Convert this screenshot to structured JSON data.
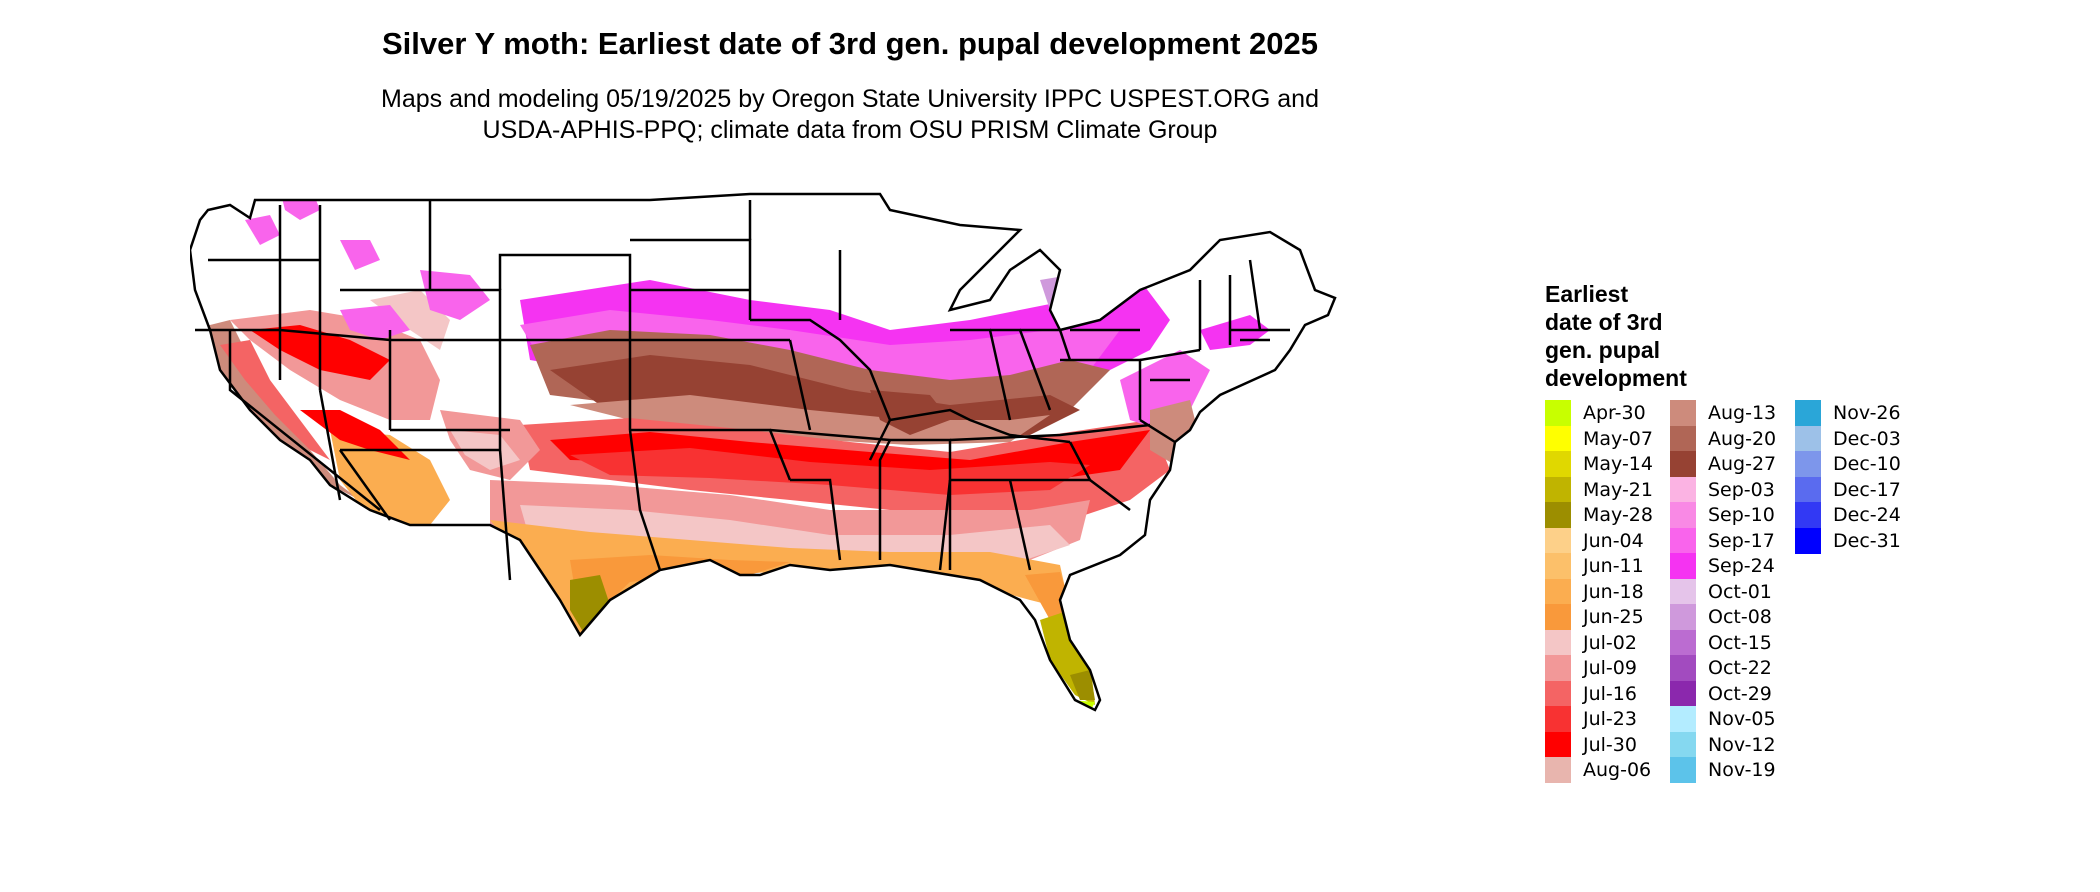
{
  "title": "Silver Y moth: Earliest date of 3rd gen. pupal development 2025",
  "subtitle_line1": "Maps and modeling 05/19/2025 by Oregon State University IPPC USPEST.ORG and",
  "subtitle_line2": "USDA-APHIS-PPQ; climate data from OSU PRISM Climate Group",
  "legend": {
    "title_lines": [
      "Earliest",
      "date of 3rd",
      "gen. pupal",
      "development"
    ],
    "columns": [
      [
        {
          "label": "Apr-30",
          "color": "#c8ff00"
        },
        {
          "label": "May-07",
          "color": "#ffff00"
        },
        {
          "label": "May-14",
          "color": "#e0d800"
        },
        {
          "label": "May-21",
          "color": "#c0b400"
        },
        {
          "label": "May-28",
          "color": "#9c8e00"
        },
        {
          "label": "Jun-04",
          "color": "#fdd089"
        },
        {
          "label": "Jun-11",
          "color": "#fcc06a"
        },
        {
          "label": "Jun-18",
          "color": "#fbad50"
        },
        {
          "label": "Jun-25",
          "color": "#f9993b"
        },
        {
          "label": "Jul-02",
          "color": "#f4c6c6"
        },
        {
          "label": "Jul-09",
          "color": "#f29898"
        },
        {
          "label": "Jul-16",
          "color": "#f46464"
        },
        {
          "label": "Jul-23",
          "color": "#f83232"
        },
        {
          "label": "Jul-30",
          "color": "#ff0000"
        },
        {
          "label": "Aug-06",
          "color": "#e8b5ae"
        }
      ],
      [
        {
          "label": "Aug-13",
          "color": "#cd8b7c"
        },
        {
          "label": "Aug-20",
          "color": "#b06656"
        },
        {
          "label": "Aug-27",
          "color": "#964233"
        },
        {
          "label": "Sep-03",
          "color": "#fbb3e3"
        },
        {
          "label": "Sep-10",
          "color": "#f989e5"
        },
        {
          "label": "Sep-17",
          "color": "#f964ec"
        },
        {
          "label": "Sep-24",
          "color": "#f533f2"
        },
        {
          "label": "Oct-01",
          "color": "#e5c4ea"
        },
        {
          "label": "Oct-08",
          "color": "#cf99dc"
        },
        {
          "label": "Oct-15",
          "color": "#bb6cd1"
        },
        {
          "label": "Oct-22",
          "color": "#a24bbf"
        },
        {
          "label": "Oct-29",
          "color": "#8b28ad"
        },
        {
          "label": "Nov-05",
          "color": "#b3ecff"
        },
        {
          "label": "Nov-12",
          "color": "#85d8f0"
        },
        {
          "label": "Nov-19",
          "color": "#5cc3ea"
        }
      ],
      [
        {
          "label": "Nov-26",
          "color": "#2aa6d8"
        },
        {
          "label": "Dec-03",
          "color": "#9dc1e8"
        },
        {
          "label": "Dec-10",
          "color": "#7d96eb"
        },
        {
          "label": "Dec-17",
          "color": "#5a6bef"
        },
        {
          "label": "Dec-24",
          "color": "#3239f4"
        },
        {
          "label": "Dec-31",
          "color": "#0000ff"
        }
      ]
    ]
  }
}
